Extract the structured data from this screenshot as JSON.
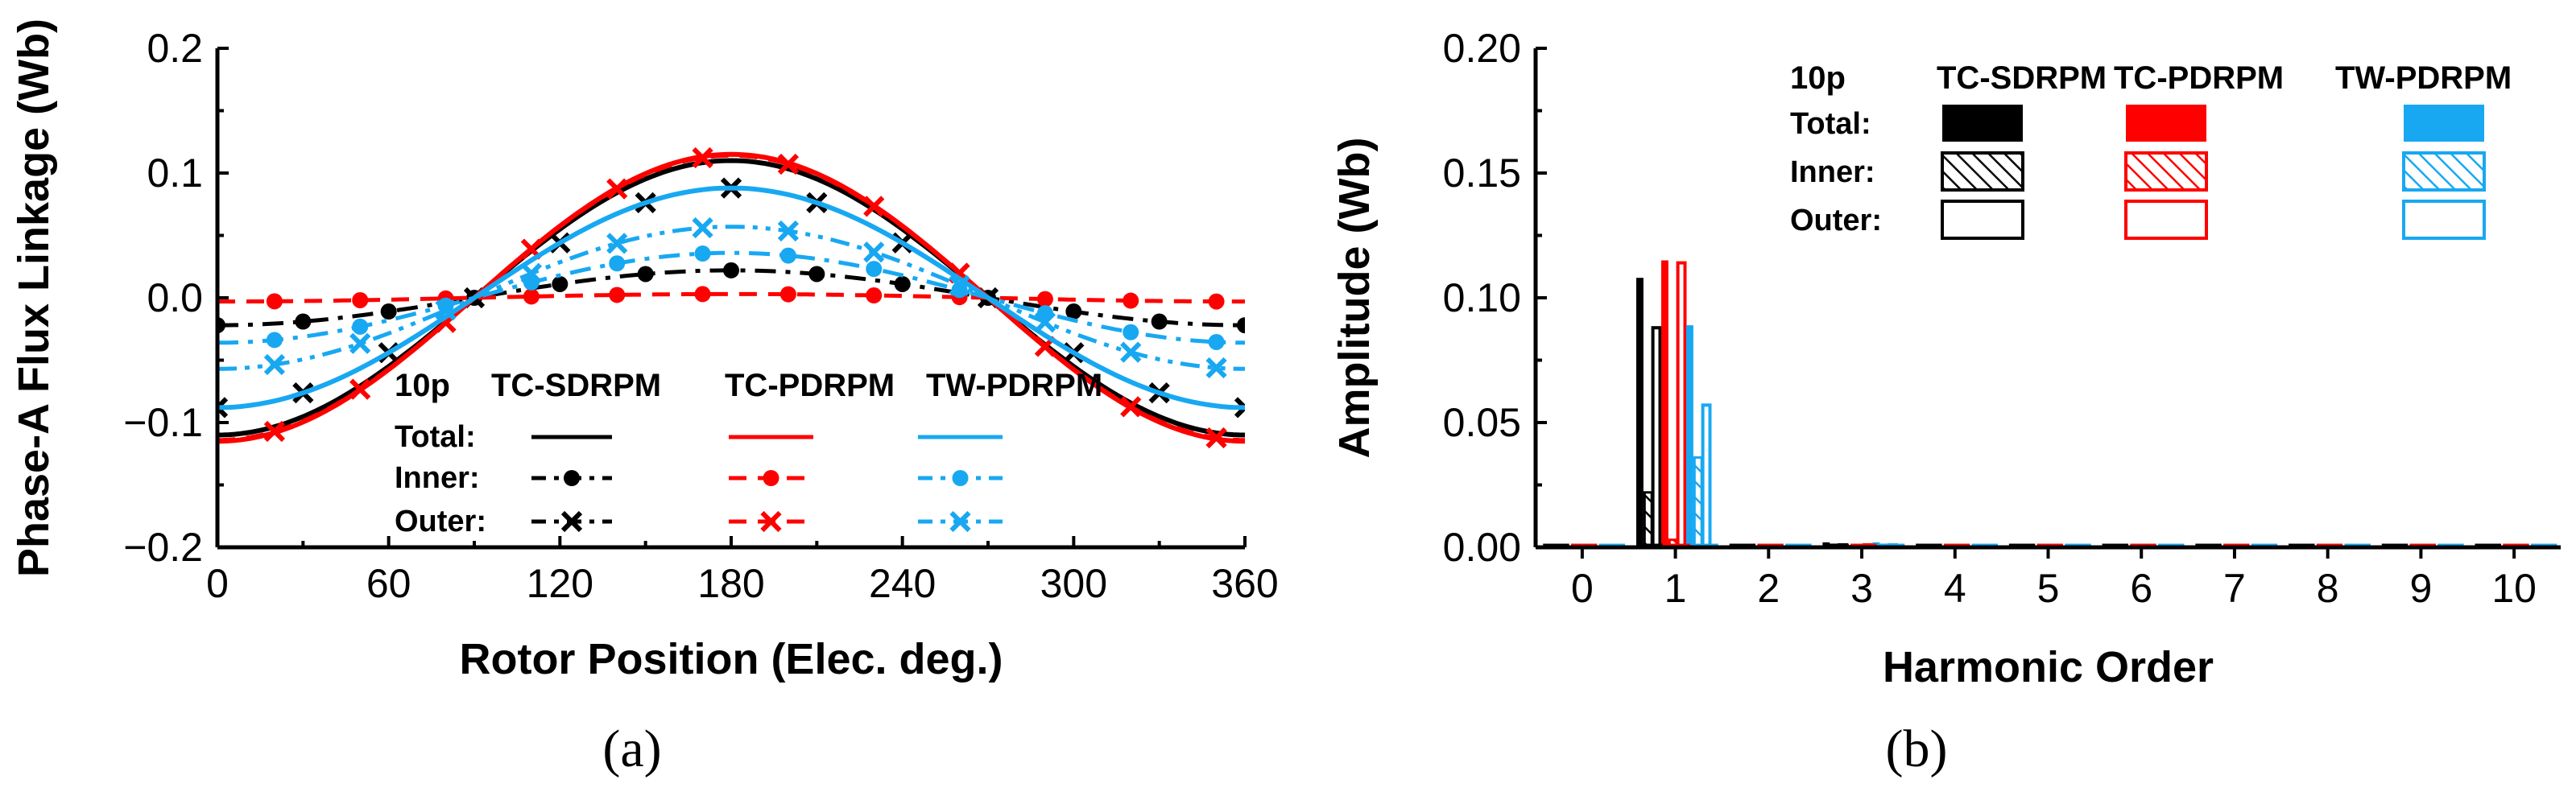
{
  "colors": {
    "TC-SDRPM": "#000000",
    "TC-PDRPM": "#ff0000",
    "TW-PDRPM": "#18a8f2"
  },
  "captions": {
    "a": "(a)",
    "b": "(b)"
  },
  "chart_data": [
    {
      "type": "line",
      "title": "",
      "xlabel": "Rotor Position (Elec. deg.)",
      "ylabel": "Phase-A Flux Linkage (Wb)",
      "xlim": [
        0,
        360
      ],
      "ylim": [
        -0.2,
        0.2
      ],
      "xticks": [
        0,
        60,
        120,
        180,
        240,
        300,
        360
      ],
      "xtick_labels": [
        "0",
        "60",
        "120",
        "180",
        "240",
        "300",
        "360"
      ],
      "yticks": [
        -0.2,
        -0.1,
        0.0,
        0.1,
        0.2
      ],
      "ytick_labels": [
        "−0.2",
        "−0.1",
        "0.0",
        "0.1",
        "0.2"
      ],
      "legend": {
        "title": "10p",
        "columns": [
          "TC-SDRPM",
          "TC-PDRPM",
          "TW-PDRPM"
        ],
        "rows": [
          "Total:",
          "Inner:",
          "Outer:"
        ]
      },
      "x": [
        0,
        30,
        60,
        90,
        120,
        150,
        180,
        210,
        240,
        270,
        300,
        330,
        360
      ],
      "series": [
        {
          "name": "TC-SDRPM Total",
          "model": "TC-SDRPM",
          "part": "Total",
          "marker": "none",
          "dash": "solid",
          "values": [
            -0.11,
            -0.095,
            -0.055,
            0.0,
            0.055,
            0.095,
            0.11,
            0.095,
            0.055,
            0.0,
            -0.055,
            -0.095,
            -0.11
          ]
        },
        {
          "name": "TC-SDRPM Inner",
          "model": "TC-SDRPM",
          "part": "Inner",
          "marker": "dot",
          "dash": "dashdot",
          "values": [
            -0.022,
            -0.019,
            -0.011,
            0.0,
            0.011,
            0.019,
            0.022,
            0.019,
            0.011,
            0.0,
            -0.011,
            -0.019,
            -0.022
          ]
        },
        {
          "name": "TC-SDRPM Outer",
          "model": "TC-SDRPM",
          "part": "Outer",
          "marker": "cross",
          "dash": "dashdotdot",
          "values": [
            -0.088,
            -0.076,
            -0.044,
            0.0,
            0.044,
            0.076,
            0.088,
            0.076,
            0.044,
            0.0,
            -0.044,
            -0.076,
            -0.088
          ]
        },
        {
          "name": "TC-PDRPM Total",
          "model": "TC-PDRPM",
          "part": "Total",
          "marker": "none",
          "dash": "solid",
          "values": [
            -0.115,
            -0.1,
            -0.058,
            0.0,
            0.058,
            0.1,
            0.115,
            0.1,
            0.058,
            0.0,
            -0.058,
            -0.1,
            -0.115
          ]
        },
        {
          "name": "TC-PDRPM Inner",
          "model": "TC-PDRPM",
          "part": "Inner",
          "marker": "dot",
          "dash": "dash",
          "values": [
            -0.003,
            -0.0026,
            -0.0015,
            0.0,
            0.0015,
            0.0026,
            0.003,
            0.0026,
            0.0015,
            0.0,
            -0.0015,
            -0.0026,
            -0.003
          ]
        },
        {
          "name": "TC-PDRPM Outer",
          "model": "TC-PDRPM",
          "part": "Outer",
          "marker": "cross",
          "dash": "dash",
          "values": [
            -0.114,
            -0.099,
            -0.057,
            0.0,
            0.057,
            0.099,
            0.114,
            0.099,
            0.057,
            0.0,
            -0.057,
            -0.099,
            -0.114
          ]
        },
        {
          "name": "TW-PDRPM Total",
          "model": "TW-PDRPM",
          "part": "Total",
          "marker": "none",
          "dash": "solid",
          "values": [
            -0.088,
            -0.076,
            -0.044,
            0.0,
            0.044,
            0.076,
            0.088,
            0.076,
            0.044,
            0.0,
            -0.044,
            -0.076,
            -0.088
          ]
        },
        {
          "name": "TW-PDRPM Inner",
          "model": "TW-PDRPM",
          "part": "Inner",
          "marker": "dot",
          "dash": "dashdot",
          "values": [
            -0.036,
            -0.031,
            -0.018,
            0.0,
            0.018,
            0.031,
            0.036,
            0.031,
            0.018,
            0.0,
            -0.018,
            -0.031,
            -0.036
          ]
        },
        {
          "name": "TW-PDRPM Outer",
          "model": "TW-PDRPM",
          "part": "Outer",
          "marker": "cross",
          "dash": "dashdotdot",
          "values": [
            -0.057,
            -0.049,
            -0.029,
            0.0,
            0.029,
            0.049,
            0.057,
            0.049,
            0.029,
            0.0,
            -0.029,
            -0.049,
            -0.057
          ]
        }
      ]
    },
    {
      "type": "bar",
      "title": "",
      "xlabel": "Harmonic Order",
      "ylabel": "Amplitude (Wb)",
      "xlim": [
        -0.5,
        10.5
      ],
      "ylim": [
        0,
        0.2
      ],
      "categories": [
        "0",
        "1",
        "2",
        "3",
        "4",
        "5",
        "6",
        "7",
        "8",
        "9",
        "10"
      ],
      "yticks": [
        0.0,
        0.05,
        0.1,
        0.15,
        0.2
      ],
      "ytick_labels": [
        "0.00",
        "0.05",
        "0.10",
        "0.15",
        "0.20"
      ],
      "legend": {
        "title": "10p",
        "columns": [
          "TC-SDRPM",
          "TC-PDRPM",
          "TW-PDRPM"
        ],
        "rows": [
          "Total:",
          "Inner:",
          "Outer:"
        ]
      },
      "series": [
        {
          "name": "TC-SDRPM Total",
          "model": "TC-SDRPM",
          "part": "Total",
          "fill": "solid",
          "values": [
            0,
            0.108,
            0,
            0.002,
            0,
            0,
            0,
            0,
            0,
            0,
            0
          ]
        },
        {
          "name": "TC-SDRPM Inner",
          "model": "TC-SDRPM",
          "part": "Inner",
          "fill": "hatch",
          "values": [
            0,
            0.022,
            0,
            0.001,
            0,
            0,
            0,
            0,
            0,
            0,
            0
          ]
        },
        {
          "name": "TC-SDRPM Outer",
          "model": "TC-SDRPM",
          "part": "Outer",
          "fill": "hollow",
          "values": [
            0,
            0.088,
            0,
            0.001,
            0,
            0,
            0,
            0,
            0,
            0,
            0
          ]
        },
        {
          "name": "TC-PDRPM Total",
          "model": "TC-PDRPM",
          "part": "Total",
          "fill": "solid",
          "values": [
            0,
            0.115,
            0,
            0.001,
            0,
            0,
            0,
            0,
            0,
            0,
            0
          ]
        },
        {
          "name": "TC-PDRPM Inner",
          "model": "TC-PDRPM",
          "part": "Inner",
          "fill": "hatch",
          "values": [
            0,
            0.003,
            0,
            0,
            0,
            0,
            0,
            0,
            0,
            0,
            0
          ]
        },
        {
          "name": "TC-PDRPM Outer",
          "model": "TC-PDRPM",
          "part": "Outer",
          "fill": "hollow",
          "values": [
            0,
            0.114,
            0,
            0.001,
            0,
            0,
            0,
            0,
            0,
            0,
            0
          ]
        },
        {
          "name": "TW-PDRPM Total",
          "model": "TW-PDRPM",
          "part": "Total",
          "fill": "solid",
          "values": [
            0,
            0.089,
            0,
            0.002,
            0,
            0,
            0,
            0,
            0,
            0,
            0
          ]
        },
        {
          "name": "TW-PDRPM Inner",
          "model": "TW-PDRPM",
          "part": "Inner",
          "fill": "hatch",
          "values": [
            0,
            0.036,
            0,
            0.001,
            0,
            0,
            0,
            0,
            0,
            0,
            0
          ]
        },
        {
          "name": "TW-PDRPM Outer",
          "model": "TW-PDRPM",
          "part": "Outer",
          "fill": "hollow",
          "values": [
            0,
            0.057,
            0,
            0.001,
            0,
            0,
            0,
            0,
            0,
            0,
            0
          ]
        }
      ]
    }
  ]
}
